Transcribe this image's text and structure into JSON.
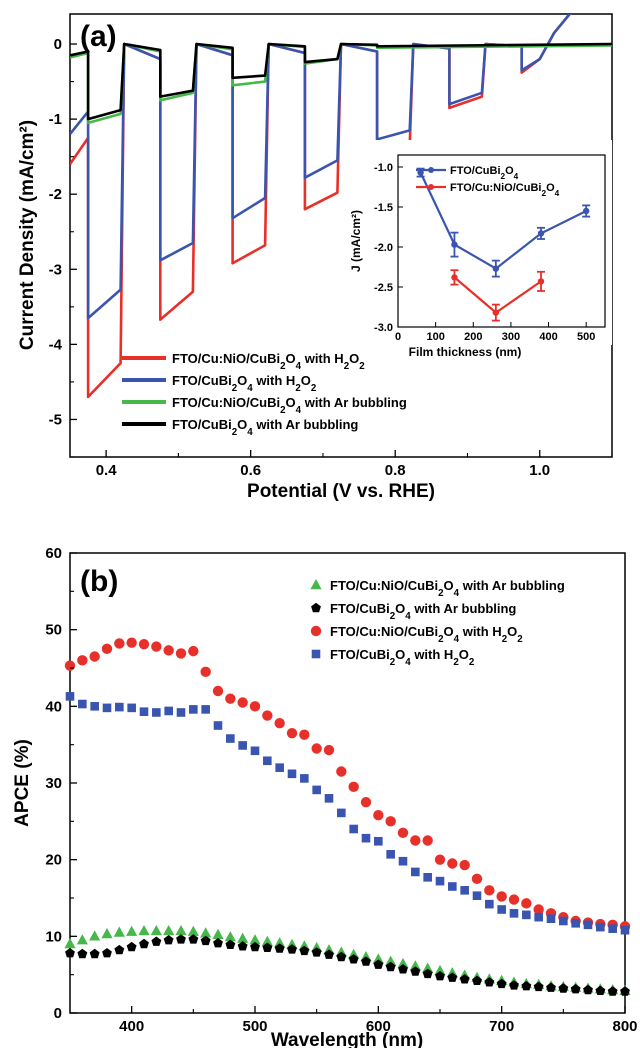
{
  "chart_data": [
    {
      "panel": "(a)",
      "type": "line",
      "xlabel": "Potential (V vs. RHE)",
      "ylabel": "Current Density (mA/cm²)",
      "xlim": [
        0.35,
        1.1
      ],
      "ylim": [
        -5.5,
        0.4
      ],
      "xticks": [
        "0.4",
        "0.6",
        "0.8",
        "1.0"
      ],
      "yticks": [
        "0",
        "-1",
        "-2",
        "-3",
        "-4",
        "-5"
      ],
      "grid": false,
      "legend_position": "bottom-left",
      "series": [
        {
          "name": "FTO/Cu:NiO/CuBi₂O₄ with H₂O₂",
          "color": "#e8302a",
          "points": [
            [
              0.35,
              -1.6
            ],
            [
              0.375,
              -1.25
            ],
            [
              0.375,
              -4.7
            ],
            [
              0.42,
              -4.25
            ],
            [
              0.425,
              0.0
            ],
            [
              0.475,
              -0.2
            ],
            [
              0.475,
              -3.67
            ],
            [
              0.52,
              -3.3
            ],
            [
              0.525,
              0.0
            ],
            [
              0.575,
              -0.15
            ],
            [
              0.575,
              -2.92
            ],
            [
              0.62,
              -2.68
            ],
            [
              0.625,
              0.0
            ],
            [
              0.675,
              -0.12
            ],
            [
              0.675,
              -2.2
            ],
            [
              0.72,
              -1.98
            ],
            [
              0.725,
              0.0
            ],
            [
              0.775,
              -0.1
            ],
            [
              0.775,
              -1.55
            ],
            [
              0.82,
              -1.35
            ],
            [
              0.825,
              0.0
            ],
            [
              0.875,
              -0.06
            ],
            [
              0.875,
              -0.85
            ],
            [
              0.92,
              -0.7
            ],
            [
              0.925,
              0.0
            ],
            [
              0.975,
              -0.03
            ],
            [
              0.975,
              -0.38
            ],
            [
              1.0,
              -0.2
            ],
            [
              1.02,
              0.15
            ],
            [
              1.05,
              0.5
            ]
          ]
        },
        {
          "name": "FTO/CuBi₂O₄ with H₂O₂",
          "color": "#3a55b0",
          "points": [
            [
              0.35,
              -1.2
            ],
            [
              0.375,
              -0.9
            ],
            [
              0.375,
              -3.65
            ],
            [
              0.42,
              -3.27
            ],
            [
              0.425,
              0.0
            ],
            [
              0.475,
              -0.2
            ],
            [
              0.475,
              -2.88
            ],
            [
              0.52,
              -2.65
            ],
            [
              0.525,
              0.0
            ],
            [
              0.575,
              -0.15
            ],
            [
              0.575,
              -2.32
            ],
            [
              0.62,
              -2.05
            ],
            [
              0.625,
              0.0
            ],
            [
              0.675,
              -0.12
            ],
            [
              0.675,
              -1.78
            ],
            [
              0.72,
              -1.55
            ],
            [
              0.725,
              0.0
            ],
            [
              0.775,
              -0.1
            ],
            [
              0.775,
              -1.27
            ],
            [
              0.82,
              -1.15
            ],
            [
              0.825,
              0.0
            ],
            [
              0.875,
              -0.06
            ],
            [
              0.875,
              -0.8
            ],
            [
              0.92,
              -0.65
            ],
            [
              0.925,
              0.0
            ],
            [
              0.975,
              -0.03
            ],
            [
              0.975,
              -0.35
            ],
            [
              1.0,
              -0.2
            ],
            [
              1.02,
              0.15
            ],
            [
              1.05,
              0.5
            ]
          ]
        },
        {
          "name": "FTO/Cu:NiO/CuBi₂O₄ with Ar bubbling",
          "color": "#46b84a",
          "points": [
            [
              0.35,
              -0.18
            ],
            [
              0.375,
              -0.12
            ],
            [
              0.375,
              -1.05
            ],
            [
              0.42,
              -0.93
            ],
            [
              0.425,
              0.0
            ],
            [
              0.475,
              -0.1
            ],
            [
              0.475,
              -0.75
            ],
            [
              0.52,
              -0.65
            ],
            [
              0.525,
              0.0
            ],
            [
              0.575,
              -0.07
            ],
            [
              0.575,
              -0.55
            ],
            [
              0.62,
              -0.5
            ],
            [
              0.625,
              0.0
            ],
            [
              0.675,
              -0.04
            ],
            [
              0.675,
              -0.26
            ],
            [
              0.72,
              -0.2
            ],
            [
              0.725,
              0.0
            ],
            [
              0.775,
              -0.02
            ],
            [
              0.775,
              -0.05
            ],
            [
              1.1,
              -0.02
            ]
          ]
        },
        {
          "name": "FTO/CuBi₂O₄ with Ar bubbling",
          "color": "#000000",
          "points": [
            [
              0.35,
              -0.15
            ],
            [
              0.375,
              -0.1
            ],
            [
              0.375,
              -1.0
            ],
            [
              0.42,
              -0.88
            ],
            [
              0.425,
              0.0
            ],
            [
              0.475,
              -0.08
            ],
            [
              0.475,
              -0.7
            ],
            [
              0.52,
              -0.62
            ],
            [
              0.525,
              0.0
            ],
            [
              0.575,
              -0.05
            ],
            [
              0.575,
              -0.45
            ],
            [
              0.62,
              -0.42
            ],
            [
              0.625,
              0.0
            ],
            [
              0.675,
              -0.03
            ],
            [
              0.675,
              -0.24
            ],
            [
              0.72,
              -0.2
            ],
            [
              0.725,
              0.0
            ],
            [
              0.775,
              -0.01
            ],
            [
              0.775,
              -0.03
            ],
            [
              1.1,
              0.0
            ]
          ]
        }
      ],
      "inset": {
        "type": "line",
        "xlabel": "Film thickness (nm)",
        "ylabel": "J (mA/cm²)",
        "xlim": [
          0,
          550
        ],
        "ylim": [
          -3.0,
          -0.85
        ],
        "xticks": [
          "0",
          "100",
          "200",
          "300",
          "400",
          "500"
        ],
        "yticks": [
          "-1.0",
          "-1.5",
          "-2.0",
          "-2.5",
          "-3.0"
        ],
        "legend_position": "top",
        "series": [
          {
            "name": "FTO/CuBi₂O₄",
            "color": "#3a55b0",
            "x": [
              60,
              150,
              260,
              380,
              500
            ],
            "y": [
              -1.07,
              -1.97,
              -2.27,
              -1.83,
              -1.55
            ],
            "err": [
              0.05,
              0.15,
              0.1,
              0.07,
              0.07
            ]
          },
          {
            "name": "FTO/Cu:NiO/CuBi₂O₄",
            "color": "#e8302a",
            "x": [
              150,
              260,
              380
            ],
            "y": [
              -2.38,
              -2.82,
              -2.43
            ],
            "err": [
              0.09,
              0.1,
              0.12
            ]
          }
        ]
      }
    },
    {
      "panel": "(b)",
      "type": "scatter",
      "xlabel": "Wavelength (nm)",
      "ylabel": "APCE (%)",
      "xlim": [
        350,
        800
      ],
      "ylim": [
        0,
        60
      ],
      "xticks": [
        "400",
        "500",
        "600",
        "700",
        "800"
      ],
      "yticks": [
        "0",
        "10",
        "20",
        "30",
        "40",
        "50",
        "60"
      ],
      "grid": false,
      "legend_position": "top-right",
      "x": [
        350,
        360,
        370,
        380,
        390,
        400,
        410,
        420,
        430,
        440,
        450,
        460,
        470,
        480,
        490,
        500,
        510,
        520,
        530,
        540,
        550,
        560,
        570,
        580,
        590,
        600,
        610,
        620,
        630,
        640,
        650,
        660,
        670,
        680,
        690,
        700,
        710,
        720,
        730,
        740,
        750,
        760,
        770,
        780,
        790,
        800
      ],
      "series": [
        {
          "name": "FTO/Cu:NiO/CuBi₂O₄ with Ar bubbling",
          "color": "#46b84a",
          "marker": "triangle",
          "values": [
            9.0,
            9.5,
            10.0,
            10.3,
            10.5,
            10.6,
            10.7,
            10.7,
            10.7,
            10.7,
            10.6,
            10.4,
            10.2,
            9.9,
            9.7,
            9.5,
            9.3,
            9.1,
            8.9,
            8.7,
            8.5,
            8.2,
            7.9,
            7.6,
            7.3,
            7.0,
            6.7,
            6.4,
            6.1,
            5.8,
            5.5,
            5.2,
            4.9,
            4.6,
            4.4,
            4.2,
            4.0,
            3.8,
            3.7,
            3.5,
            3.4,
            3.3,
            3.2,
            3.1,
            3.0,
            2.9
          ]
        },
        {
          "name": "FTO/CuBi₂O₄ with Ar bubbling",
          "color": "#000000",
          "marker": "pentagon",
          "values": [
            7.8,
            7.7,
            7.7,
            7.8,
            8.2,
            8.6,
            9.0,
            9.3,
            9.5,
            9.6,
            9.6,
            9.4,
            9.1,
            8.9,
            8.7,
            8.6,
            8.5,
            8.4,
            8.3,
            8.1,
            7.9,
            7.6,
            7.3,
            7.0,
            6.7,
            6.3,
            6.0,
            5.7,
            5.4,
            5.1,
            4.8,
            4.6,
            4.4,
            4.2,
            4.0,
            3.8,
            3.6,
            3.5,
            3.4,
            3.3,
            3.2,
            3.1,
            3.0,
            2.9,
            2.8,
            2.8
          ]
        },
        {
          "name": "FTO/Cu:NiO/CuBi₂O₄ with H₂O₂",
          "color": "#e8302a",
          "marker": "circle",
          "values": [
            45.3,
            46.0,
            46.5,
            47.5,
            48.2,
            48.3,
            48.1,
            47.8,
            47.3,
            46.9,
            47.2,
            44.5,
            42.0,
            41.0,
            40.5,
            40.0,
            38.8,
            37.8,
            36.5,
            36.3,
            34.5,
            34.3,
            31.5,
            29.5,
            27.5,
            25.8,
            25.0,
            23.5,
            22.5,
            22.5,
            20.0,
            19.5,
            19.3,
            17.5,
            16.0,
            15.2,
            14.8,
            14.3,
            13.5,
            13.0,
            12.5,
            12.0,
            11.8,
            11.6,
            11.5,
            11.3
          ]
        },
        {
          "name": "FTO/CuBi₂O₄ with H₂O₂",
          "color": "#3a55b0",
          "marker": "square",
          "values": [
            41.3,
            40.3,
            40.0,
            39.8,
            39.9,
            39.8,
            39.3,
            39.2,
            39.4,
            39.2,
            39.6,
            39.6,
            37.5,
            35.8,
            34.9,
            34.2,
            32.9,
            32.0,
            31.2,
            30.6,
            29.1,
            28.0,
            26.1,
            24.0,
            22.8,
            22.4,
            20.7,
            19.8,
            18.4,
            17.7,
            17.2,
            16.5,
            16.0,
            15.3,
            14.2,
            13.5,
            13.0,
            12.8,
            12.5,
            12.3,
            12.0,
            11.7,
            11.5,
            11.2,
            11.0,
            10.8
          ]
        }
      ]
    }
  ]
}
